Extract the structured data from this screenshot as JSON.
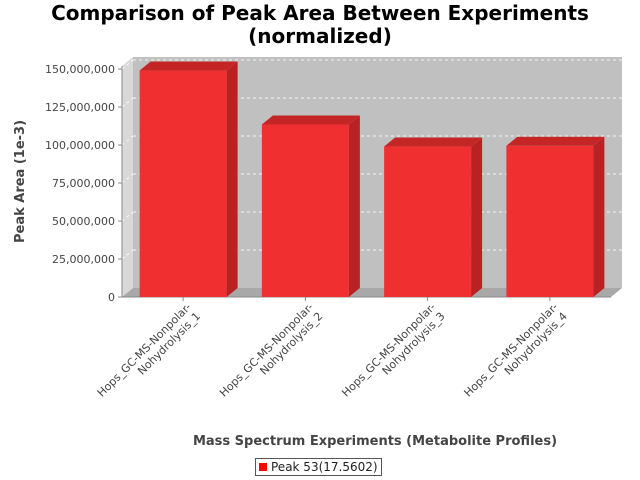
{
  "chart_data": {
    "type": "bar",
    "title_lines": [
      "Comparison of Peak Area Between Experiments",
      "(normalized)"
    ],
    "xlabel": "Mass Spectrum Experiments (Metabolite Profiles)",
    "ylabel": "Peak Area (1e-3)",
    "categories": [
      [
        "Hops_GC-MS-Nonpolar-",
        "Nohydrolysis_1"
      ],
      [
        "Hops_GC-MS-Nonpolar-",
        "Nohydrolysis_2"
      ],
      [
        "Hops_GC-MS-Nonpolar-",
        "Nohydrolysis_3"
      ],
      [
        "Hops_GC-MS-Nonpolar-",
        "Nohydrolysis_4"
      ]
    ],
    "series": [
      {
        "name": "Peak 53(17.5602)",
        "values": [
          149000000,
          113500000,
          99000000,
          99500000
        ]
      }
    ],
    "yticks": [
      0,
      25000000,
      50000000,
      75000000,
      100000000,
      125000000,
      150000000
    ],
    "ytick_labels": [
      "0",
      "25,000,000",
      "50,000,000",
      "75,000,000",
      "100,000,000",
      "125,000,000",
      "150,000,000"
    ],
    "ylim": [
      0,
      152000000
    ],
    "grid": true,
    "legend_position": "bottom",
    "colors": {
      "bar_front": "#f03030",
      "bar_side": "#b82222",
      "bar_top": "#c42626",
      "plot_bg": "#c0c0c0",
      "wall_left": "#d8d8d8",
      "floor": "#a8a8a8"
    }
  }
}
